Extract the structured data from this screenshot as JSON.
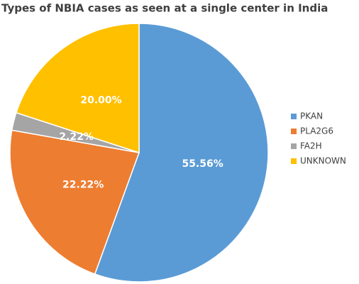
{
  "chart_data": {
    "type": "pie",
    "title": "Types of NBIA cases as seen at a single center in India",
    "categories": [
      "PKAN",
      "PLA2G6",
      "FA2H",
      "UNKNOWN"
    ],
    "values": [
      55.56,
      22.22,
      2.22,
      20.0
    ],
    "value_labels": [
      "55.56%",
      "22.22%",
      "2.22%",
      "20.00%"
    ],
    "colors": [
      "#5b9bd5",
      "#ed7d31",
      "#a5a5a5",
      "#ffc000"
    ],
    "legend": "right"
  }
}
